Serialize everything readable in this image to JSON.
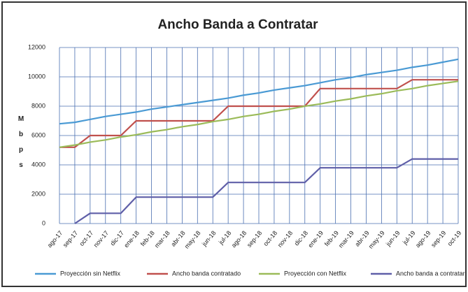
{
  "chart_data": {
    "type": "line",
    "title": "Ancho Banda a Contratar",
    "y_label": "Mbps",
    "categories": [
      "ago-17",
      "sep-17",
      "oct-17",
      "nov-17",
      "dic-17",
      "ene-18",
      "feb-18",
      "mar-18",
      "abr-18",
      "may-18",
      "jun-18",
      "jul-18",
      "ago-18",
      "sep-18",
      "oct-18",
      "nov-18",
      "dic-18",
      "ene-19",
      "feb-19",
      "mar-19",
      "abr-19",
      "may-19",
      "jun-19",
      "jul-19",
      "ago-19",
      "sep-19",
      "oct-19"
    ],
    "series": [
      {
        "name": "Proyección sin Netflix",
        "color": "#4a9ad4",
        "values": [
          6800,
          6900,
          7100,
          7300,
          7450,
          7600,
          7800,
          7950,
          8100,
          8250,
          8400,
          8550,
          8750,
          8900,
          9100,
          9250,
          9400,
          9600,
          9800,
          9950,
          10150,
          10300,
          10450,
          10650,
          10800,
          11000,
          11200
        ]
      },
      {
        "name": "Ancho banda contratado",
        "color": "#c0504d",
        "values": [
          5200,
          5200,
          6000,
          6000,
          6000,
          7000,
          7000,
          7000,
          7000,
          7000,
          7000,
          8000,
          8000,
          8000,
          8000,
          8000,
          8000,
          9200,
          9200,
          9200,
          9200,
          9200,
          9200,
          9800,
          9800,
          9800,
          9800
        ]
      },
      {
        "name": "Proyección con Netflix",
        "color": "#9bbb59",
        "values": [
          5200,
          5350,
          5550,
          5700,
          5900,
          6050,
          6250,
          6400,
          6600,
          6750,
          6950,
          7100,
          7300,
          7450,
          7650,
          7800,
          8000,
          8150,
          8350,
          8500,
          8700,
          8850,
          9050,
          9200,
          9400,
          9550,
          9700
        ]
      },
      {
        "name": "Ancho banda a contratar",
        "color": "#5f5fa8",
        "values": [
          null,
          0,
          700,
          700,
          700,
          1800,
          1800,
          1800,
          1800,
          1800,
          1800,
          2800,
          2800,
          2800,
          2800,
          2800,
          2800,
          3800,
          3800,
          3800,
          3800,
          3800,
          3800,
          4400,
          4400,
          4400,
          4400
        ]
      }
    ],
    "ylim": [
      0,
      12000
    ],
    "yticks": [
      0,
      2000,
      4000,
      6000,
      8000,
      10000,
      12000
    ],
    "grid": true
  }
}
